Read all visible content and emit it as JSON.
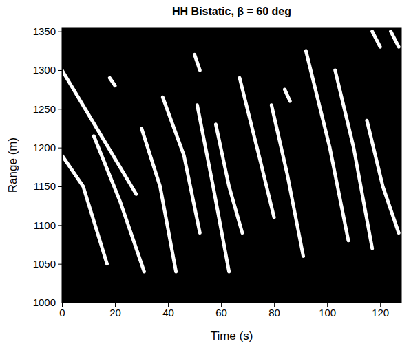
{
  "chart_data": {
    "type": "line",
    "title": "HH Bistatic, β = 60 deg",
    "x_label": "Time (s)",
    "y_label": "Range (m)",
    "xlim": [
      0,
      128
    ],
    "ylim": [
      1000,
      1355
    ],
    "xticks": [
      0,
      20,
      40,
      60,
      80,
      100,
      120
    ],
    "yticks": [
      1000,
      1050,
      1100,
      1150,
      1200,
      1250,
      1300,
      1350
    ],
    "grid": false,
    "color": "#ffffff",
    "series": [
      {
        "x": [
          0,
          14,
          28
        ],
        "values": [
          1300,
          1220,
          1140
        ]
      },
      {
        "x": [
          0,
          8,
          17
        ],
        "values": [
          1190,
          1150,
          1050
        ]
      },
      {
        "x": [
          12,
          22,
          31
        ],
        "values": [
          1215,
          1130,
          1040
        ]
      },
      {
        "x": [
          30,
          37,
          43
        ],
        "values": [
          1225,
          1150,
          1040
        ]
      },
      {
        "x": [
          38,
          46,
          52
        ],
        "values": [
          1265,
          1190,
          1090
        ]
      },
      {
        "x": [
          51,
          57,
          63
        ],
        "values": [
          1255,
          1150,
          1040
        ]
      },
      {
        "x": [
          58,
          63,
          68
        ],
        "values": [
          1230,
          1150,
          1090
        ]
      },
      {
        "x": [
          67,
          75,
          80
        ],
        "values": [
          1290,
          1180,
          1110
        ]
      },
      {
        "x": [
          79,
          85,
          91
        ],
        "values": [
          1255,
          1165,
          1060
        ]
      },
      {
        "x": [
          92,
          101,
          108
        ],
        "values": [
          1325,
          1200,
          1080
        ]
      },
      {
        "x": [
          103,
          110,
          117
        ],
        "values": [
          1300,
          1200,
          1070
        ]
      },
      {
        "x": [
          115,
          121,
          127
        ],
        "values": [
          1235,
          1150,
          1090
        ]
      },
      {
        "x": [
          117,
          120
        ],
        "values": [
          1350,
          1330
        ]
      },
      {
        "x": [
          124,
          127
        ],
        "values": [
          1350,
          1330
        ]
      },
      {
        "x": [
          50,
          52
        ],
        "values": [
          1320,
          1300
        ]
      },
      {
        "x": [
          18,
          20
        ],
        "values": [
          1290,
          1280
        ]
      },
      {
        "x": [
          84,
          86
        ],
        "values": [
          1275,
          1260
        ]
      }
    ]
  }
}
